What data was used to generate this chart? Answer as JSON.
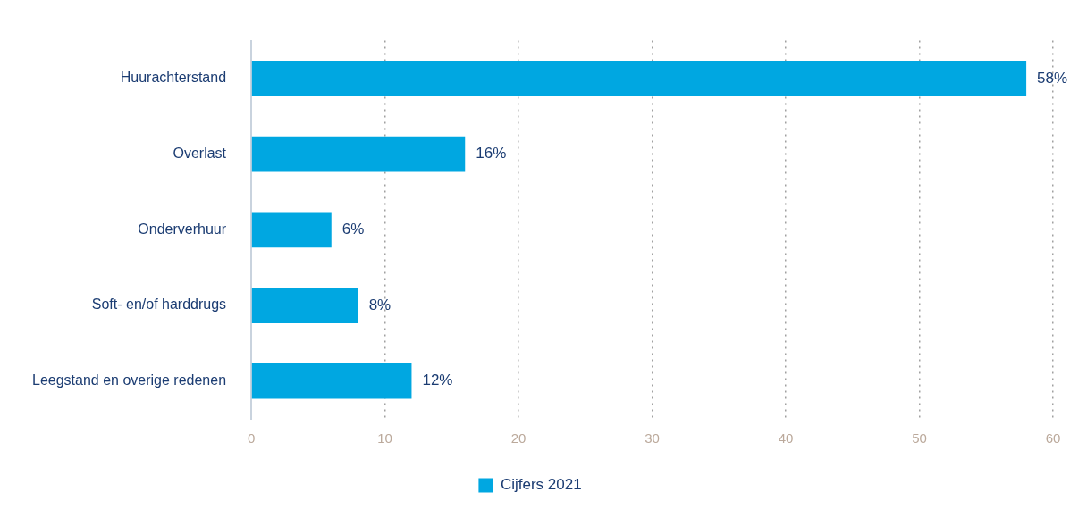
{
  "chart_data": {
    "type": "bar",
    "orientation": "horizontal",
    "categories": [
      "Huurachterstand",
      "Overlast",
      "Onderverhuur",
      "Soft- en/of harddrugs",
      "Leegstand en overige redenen"
    ],
    "series": [
      {
        "name": "Cijfers 2021",
        "color": "#00a7e1",
        "values": [
          58,
          16,
          6,
          8,
          12
        ],
        "value_labels": [
          "58%",
          "16%",
          "6%",
          "8%",
          "12%"
        ]
      }
    ],
    "xlim": [
      0,
      60
    ],
    "xticks": [
      0,
      10,
      20,
      30,
      40,
      50,
      60
    ],
    "grid": "x",
    "legend": "bottom"
  }
}
